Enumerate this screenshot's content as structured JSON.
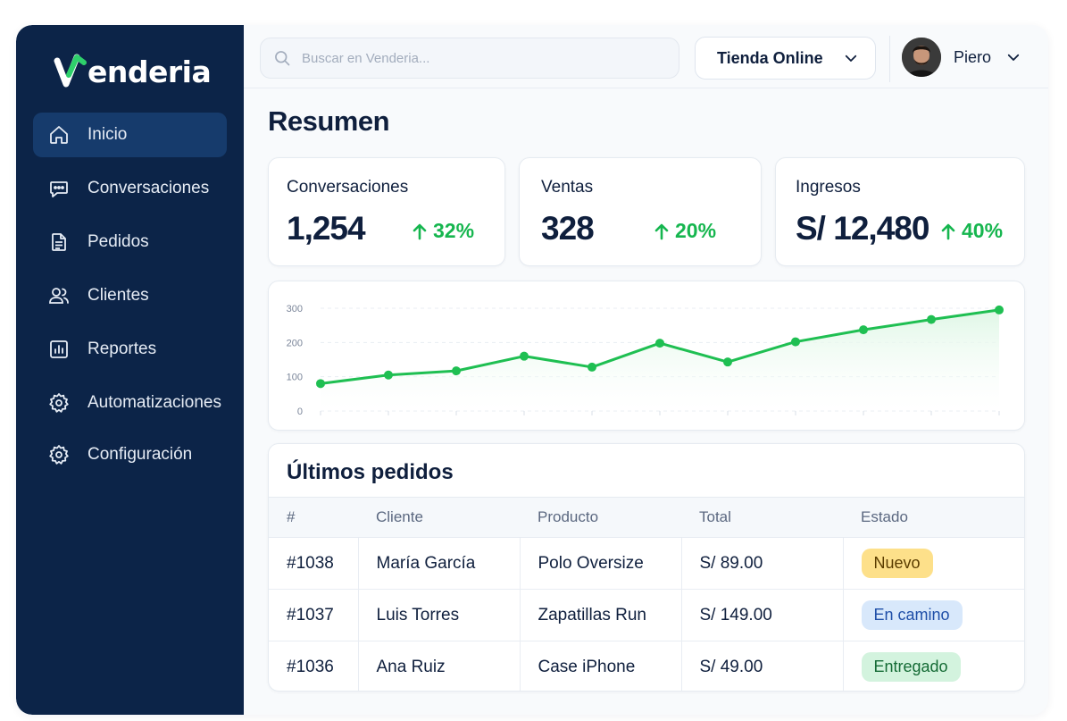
{
  "brand": {
    "name": "Venderia"
  },
  "sidebar": {
    "items": [
      {
        "label": "Inicio",
        "icon": "home-icon",
        "active": true
      },
      {
        "label": "Conversaciones",
        "icon": "chat-icon",
        "active": false
      },
      {
        "label": "Pedidos",
        "icon": "document-icon",
        "active": false
      },
      {
        "label": "Clientes",
        "icon": "users-icon",
        "active": false
      },
      {
        "label": "Reportes",
        "icon": "bar-chart-icon",
        "active": false
      },
      {
        "label": "Automatizaciones",
        "icon": "gear-icon",
        "active": false
      },
      {
        "label": "Configuración",
        "icon": "gear-icon",
        "active": false
      }
    ]
  },
  "header": {
    "search_placeholder": "Buscar en Venderia...",
    "store_selected": "Tienda Online",
    "user_name": "Piero"
  },
  "page": {
    "title": "Resumen"
  },
  "stats": [
    {
      "label": "Conversaciones",
      "value": "1,254",
      "change": "32%"
    },
    {
      "label": "Ventas",
      "value": "328",
      "change": "20%"
    },
    {
      "label": "Ingresos",
      "value": "S/ 12,480",
      "change": "40%"
    }
  ],
  "chart_data": {
    "type": "area",
    "x": [
      1,
      2,
      3,
      4,
      5,
      6,
      7,
      8,
      9,
      10,
      11
    ],
    "values": [
      80,
      105,
      117,
      160,
      128,
      198,
      143,
      202,
      237,
      267,
      295
    ],
    "yticks": [
      "300",
      "200",
      "100",
      "0"
    ],
    "ylim": [
      0,
      300
    ],
    "grid": true,
    "colors": {
      "line": "#1fbf52",
      "point": "#1fbf52",
      "fill": "#dff7e6"
    }
  },
  "orders": {
    "title": "Últimos pedidos",
    "columns": [
      "#",
      "Cliente",
      "Producto",
      "Total",
      "Estado"
    ],
    "rows": [
      {
        "id": "#1038",
        "cliente": "María García",
        "producto": "Polo Oversize",
        "total": "S/ 89.00",
        "estado": "Nuevo"
      },
      {
        "id": "#1037",
        "cliente": "Luis Torres",
        "producto": "Zapatillas Run",
        "total": "S/ 149.00",
        "estado": "En camino"
      },
      {
        "id": "#1036",
        "cliente": "Ana Ruiz",
        "producto": "Case iPhone",
        "total": "S/ 49.00",
        "estado": "Entregado"
      }
    ],
    "status_colors": {
      "Nuevo": {
        "bg": "#fde08a",
        "fg": "#5b3d00"
      },
      "En camino": {
        "bg": "#d8e8fb",
        "fg": "#1f4fa8"
      },
      "Entregado": {
        "bg": "#d3f3de",
        "fg": "#146b35"
      }
    }
  },
  "colors": {
    "sidebar_bg": "#0c2448",
    "accent_green": "#16b64f",
    "active_item": "#163b6c"
  }
}
